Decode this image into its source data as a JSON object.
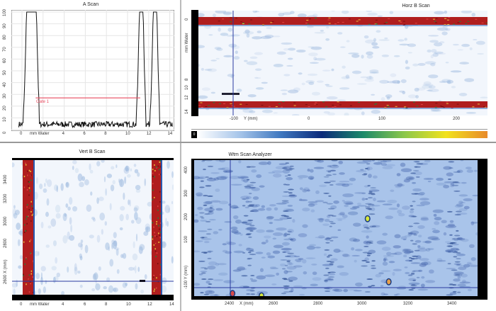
{
  "a_scan": {
    "title": "A Scan",
    "y_ticks": [
      "0",
      "10",
      "20",
      "30",
      "40",
      "50",
      "60",
      "70",
      "80",
      "90",
      "100"
    ],
    "x_ticks": [
      "0",
      "4",
      "6",
      "8",
      "10",
      "12",
      "14"
    ],
    "x_unit": "mm Water",
    "gate_label": "Gate 1",
    "gate_level": 27,
    "gate_range_mm": [
      1.3,
      11.2
    ],
    "gate_color": "#e84a5f",
    "peaks_mm": [
      0.6,
      1.2,
      11.3,
      12.6
    ]
  },
  "horz_b_scan": {
    "title": "Horz B Scan",
    "y_ticks": [
      "0",
      "mm Water",
      "8",
      "10",
      "12",
      "14"
    ],
    "x_ticks": [
      "-100",
      "0",
      "100",
      "200"
    ],
    "x_unit": "Y (mm)",
    "cursor_label": "-100"
  },
  "color_scale": {
    "label": "0",
    "colors": [
      "#ffffff",
      "#a8c6ea",
      "#3f78c0",
      "#0b2a7a",
      "#1d8a6a",
      "#8cc84a",
      "#f2e21c",
      "#e88a2a"
    ]
  },
  "vert_b_scan": {
    "title": "Vert B Scan",
    "y_ticks": [
      "3400",
      "3200",
      "3000",
      "2800",
      "2600 X (mm)"
    ],
    "x_ticks": [
      "0",
      "4",
      "6",
      "8",
      "10",
      "12",
      "14"
    ],
    "x_unit": "mm Water"
  },
  "c_scan": {
    "title": "Wtm Scan Analyzer",
    "x_ticks": [
      "2400",
      "2600",
      "2800",
      "3000",
      "3200",
      "3400"
    ],
    "x_unit": "X (mm)",
    "y_ticks": [
      "400",
      "300",
      "200",
      "100",
      "-100 Y (mm)"
    ],
    "indications": [
      {
        "x_mm": 3015,
        "y_mm": 210,
        "color": "#d8e83a"
      },
      {
        "x_mm": 3110,
        "y_mm": -60,
        "color": "#e8a04a"
      },
      {
        "x_mm": 2410,
        "y_mm": -110,
        "color": "#d84a4a"
      },
      {
        "x_mm": 2540,
        "y_mm": -120,
        "color": "#d8e83a"
      }
    ]
  }
}
